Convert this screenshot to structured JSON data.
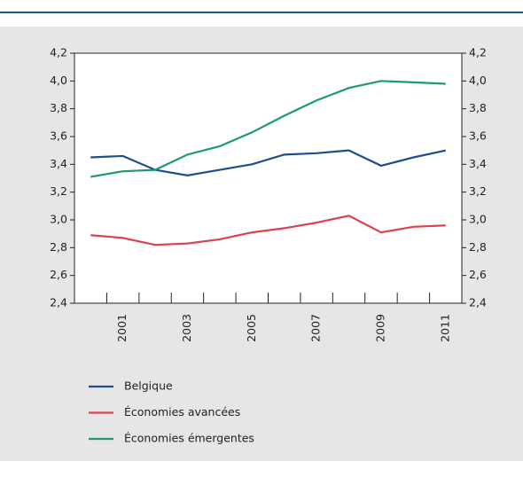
{
  "chart_data": {
    "type": "line",
    "categories": [
      null,
      "2001",
      null,
      "2003",
      null,
      "2005",
      null,
      "2007",
      null,
      "2009",
      null,
      "2011"
    ],
    "series": [
      {
        "name": "Belgique",
        "color": "#1f4e8c",
        "values": [
          3.45,
          3.46,
          3.36,
          3.32,
          3.36,
          3.4,
          3.47,
          3.48,
          3.5,
          3.39,
          3.45,
          3.5
        ]
      },
      {
        "name": "Économies avancées",
        "color": "#d9434e",
        "values": [
          2.89,
          2.87,
          2.82,
          2.83,
          2.86,
          2.91,
          2.94,
          2.98,
          3.03,
          2.91,
          2.95,
          2.96
        ]
      },
      {
        "name": "Économies émergentes",
        "color": "#1a9a6e",
        "values": [
          3.31,
          3.35,
          3.36,
          3.47,
          3.53,
          3.63,
          3.75,
          3.86,
          3.95,
          4.0,
          3.99,
          3.98
        ]
      }
    ],
    "ylim": [
      2.4,
      4.2
    ],
    "yticks": [
      {
        "value": 2.4,
        "label": "2,4"
      },
      {
        "value": 2.6,
        "label": "2,6"
      },
      {
        "value": 2.8,
        "label": "2,8"
      },
      {
        "value": 3.0,
        "label": "3,0"
      },
      {
        "value": 3.2,
        "label": "3,2"
      },
      {
        "value": 3.4,
        "label": "3,4"
      },
      {
        "value": 3.6,
        "label": "3,6"
      },
      {
        "value": 3.8,
        "label": "3,8"
      },
      {
        "value": 4.0,
        "label": "4,0"
      },
      {
        "value": 4.2,
        "label": "4,2"
      }
    ],
    "grid": false
  }
}
